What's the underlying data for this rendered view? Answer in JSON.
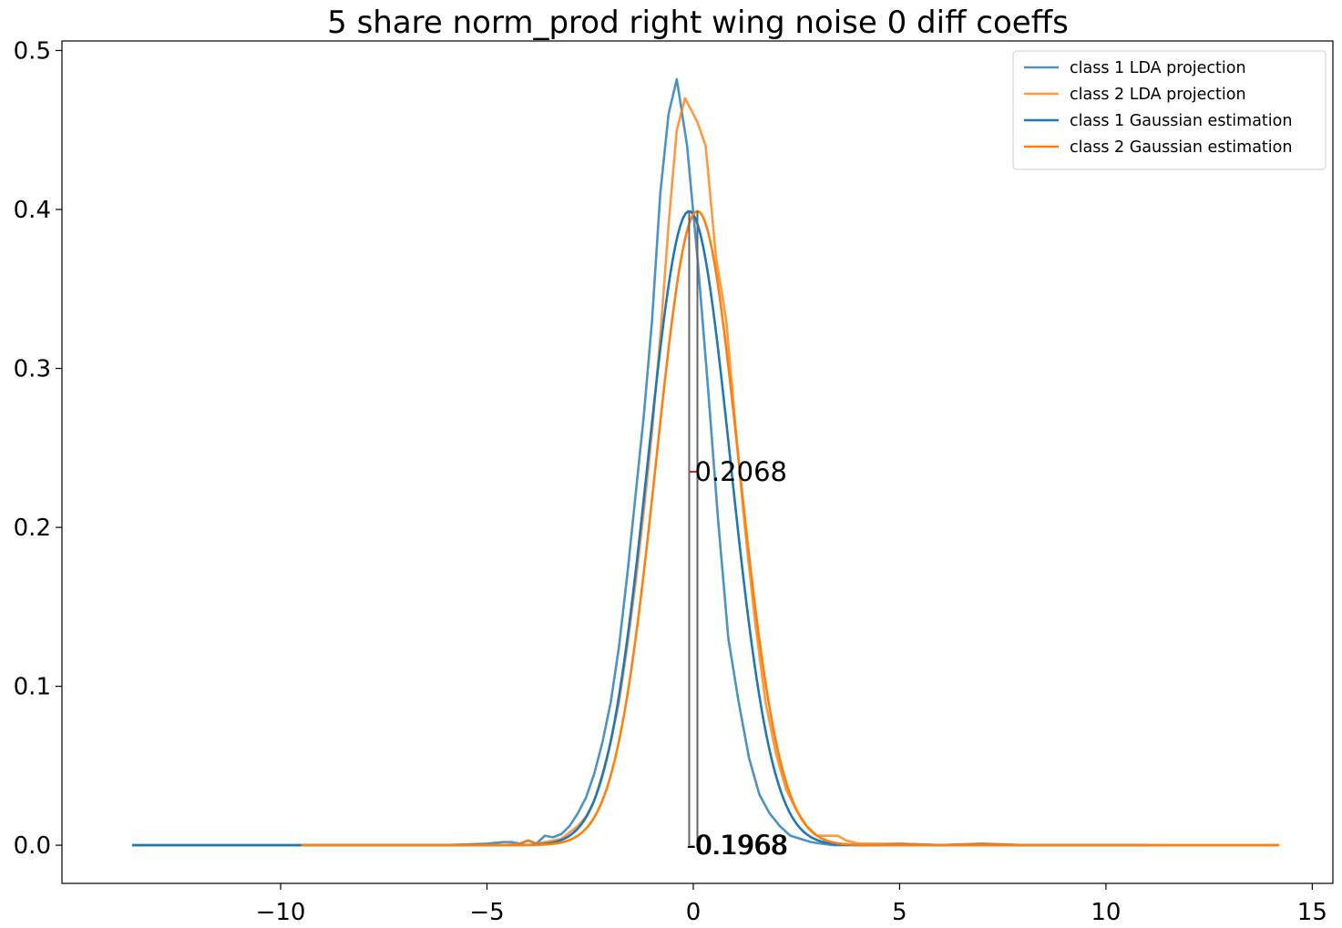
{
  "chart_data": {
    "type": "line",
    "title": "5 share norm_prod right wing noise 0 diff coeffs",
    "xlabel": "",
    "ylabel": "",
    "xlim": [
      -15.3,
      15.5
    ],
    "ylim": [
      -0.024,
      0.506
    ],
    "xticks": [
      -10,
      -5,
      0,
      5,
      10,
      15
    ],
    "xtick_labels": [
      "−10",
      "−5",
      "0",
      "5",
      "10",
      "15"
    ],
    "yticks": [
      0.0,
      0.1,
      0.2,
      0.3,
      0.4,
      0.5
    ],
    "ytick_labels": [
      "0.0",
      "0.1",
      "0.2",
      "0.3",
      "0.4",
      "0.5"
    ],
    "grid": false,
    "legend_position": "top-right",
    "colors": {
      "class1": "#1f77b4",
      "class2": "#ff7f0e",
      "vline": "#666666",
      "marker": "#d62728"
    },
    "series": [
      {
        "name": "class 1 LDA projection",
        "color": "#1f77b4",
        "opacity": 0.8,
        "x": [
          -13.6,
          -12,
          -10,
          -8,
          -6,
          -5,
          -4.6,
          -4.4,
          -4.2,
          -4.0,
          -3.8,
          -3.6,
          -3.4,
          -3.2,
          -3.0,
          -2.8,
          -2.6,
          -2.4,
          -2.2,
          -2.0,
          -1.8,
          -1.6,
          -1.4,
          -1.2,
          -1.0,
          -0.8,
          -0.6,
          -0.4,
          -0.15,
          0.1,
          0.35,
          0.6,
          0.85,
          1.1,
          1.35,
          1.6,
          1.85,
          2.1,
          2.35,
          2.6,
          2.85,
          3.1,
          3.4,
          3.8,
          4.5,
          5,
          6,
          7,
          8,
          10,
          11
        ],
        "y": [
          0.0,
          0.0,
          0.0,
          0.0,
          0.0,
          0.001,
          0.002,
          0.002,
          0.001,
          0.003,
          0.001,
          0.006,
          0.005,
          0.007,
          0.012,
          0.02,
          0.03,
          0.045,
          0.065,
          0.09,
          0.125,
          0.17,
          0.22,
          0.27,
          0.33,
          0.41,
          0.46,
          0.482,
          0.44,
          0.37,
          0.29,
          0.205,
          0.13,
          0.09,
          0.055,
          0.032,
          0.02,
          0.012,
          0.006,
          0.004,
          0.002,
          0.001,
          0.0,
          0.0,
          0.0,
          0.001,
          0.0,
          0.001,
          0.0,
          0.0,
          0.0
        ]
      },
      {
        "name": "class 2 LDA projection",
        "color": "#ff7f0e",
        "opacity": 0.8,
        "x": [
          -9.5,
          -8,
          -6,
          -5,
          -4.6,
          -4.2,
          -4.0,
          -3.8,
          -3.6,
          -3.4,
          -3.2,
          -3.0,
          -2.8,
          -2.6,
          -2.4,
          -2.2,
          -2.0,
          -1.8,
          -1.6,
          -1.4,
          -1.2,
          -1.0,
          -0.8,
          -0.6,
          -0.4,
          -0.2,
          0.1,
          0.3,
          0.55,
          0.8,
          1.0,
          1.25,
          1.5,
          1.75,
          2.0,
          2.25,
          2.5,
          2.75,
          3.0,
          3.25,
          3.5,
          3.7,
          4.0,
          4.5,
          5,
          6,
          7,
          8,
          10,
          12,
          14.2
        ],
        "y": [
          0.0,
          0.0,
          0.0,
          0.0,
          0.0,
          0.001,
          0.003,
          0.001,
          0.002,
          0.003,
          0.004,
          0.008,
          0.012,
          0.018,
          0.028,
          0.045,
          0.065,
          0.09,
          0.125,
          0.165,
          0.21,
          0.26,
          0.32,
          0.39,
          0.45,
          0.47,
          0.455,
          0.44,
          0.37,
          0.33,
          0.27,
          0.2,
          0.14,
          0.09,
          0.058,
          0.035,
          0.022,
          0.012,
          0.006,
          0.006,
          0.006,
          0.003,
          0.001,
          0.001,
          0.001,
          0.0,
          0.001,
          0.0,
          0.0,
          0.0,
          0.0
        ]
      },
      {
        "name": "class 1 Gaussian estimation",
        "color": "#1f77b4",
        "opacity": 1,
        "gaussian": {
          "mean": -0.1,
          "std": 1.0,
          "xmin": -13.6,
          "xmax": 11.0
        }
      },
      {
        "name": "class 2 Gaussian estimation",
        "color": "#ff7f0e",
        "opacity": 1,
        "gaussian": {
          "mean": 0.1,
          "std": 1.0,
          "xmin": -9.5,
          "xmax": 14.2
        }
      }
    ],
    "vlines": [
      {
        "x": -0.1,
        "y0": 0.0,
        "y1": 0.399
      },
      {
        "x": 0.1,
        "y0": 0.0,
        "y1": 0.399
      }
    ],
    "marker": {
      "x0": -0.1,
      "x1": 0.1,
      "y": 0.235
    },
    "annotations": [
      {
        "text": "0.2068",
        "x": 0.1,
        "y": 0.235
      },
      {
        "text": "-0.1968",
        "x": -0.1,
        "y": 0.0
      },
      {
        "text": "0.1968",
        "x": 0.1,
        "y": 0.0
      }
    ]
  }
}
